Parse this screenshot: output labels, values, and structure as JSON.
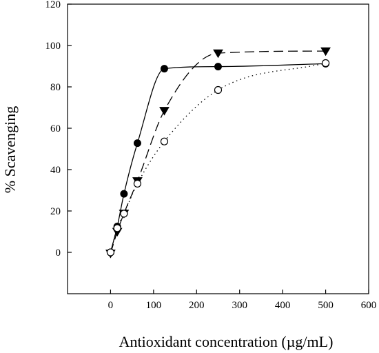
{
  "chart_data": {
    "type": "line",
    "title": "",
    "xlabel": "Antioxidant concentration (µg/mL)",
    "ylabel": "% Scavenging",
    "xlim": [
      -100,
      600
    ],
    "ylim": [
      -20,
      120
    ],
    "xticks": [
      0,
      100,
      200,
      300,
      400,
      500,
      600
    ],
    "yticks": [
      0,
      20,
      40,
      60,
      80,
      100,
      120
    ],
    "grid": false,
    "legend": "none",
    "series": [
      {
        "marker": "filled-circle",
        "line_style": "solid",
        "x": [
          0,
          15.6,
          31.2,
          62.5,
          125,
          250,
          500
        ],
        "y": [
          0,
          12.5,
          28.3,
          52.8,
          88.8,
          89.8,
          91.2
        ]
      },
      {
        "marker": "filled-triangle-down",
        "line_style": "dashed",
        "x": [
          0,
          15.6,
          31.2,
          62.5,
          125,
          250,
          500
        ],
        "y": [
          -0.5,
          10,
          18.8,
          34.5,
          68.5,
          96.3,
          97.3
        ]
      },
      {
        "marker": "open-circle",
        "line_style": "dotted",
        "x": [
          0,
          15.6,
          31.2,
          62.5,
          125,
          250,
          500
        ],
        "y": [
          0,
          11.7,
          18.7,
          33.2,
          53.6,
          78.5,
          91.5
        ]
      }
    ]
  }
}
